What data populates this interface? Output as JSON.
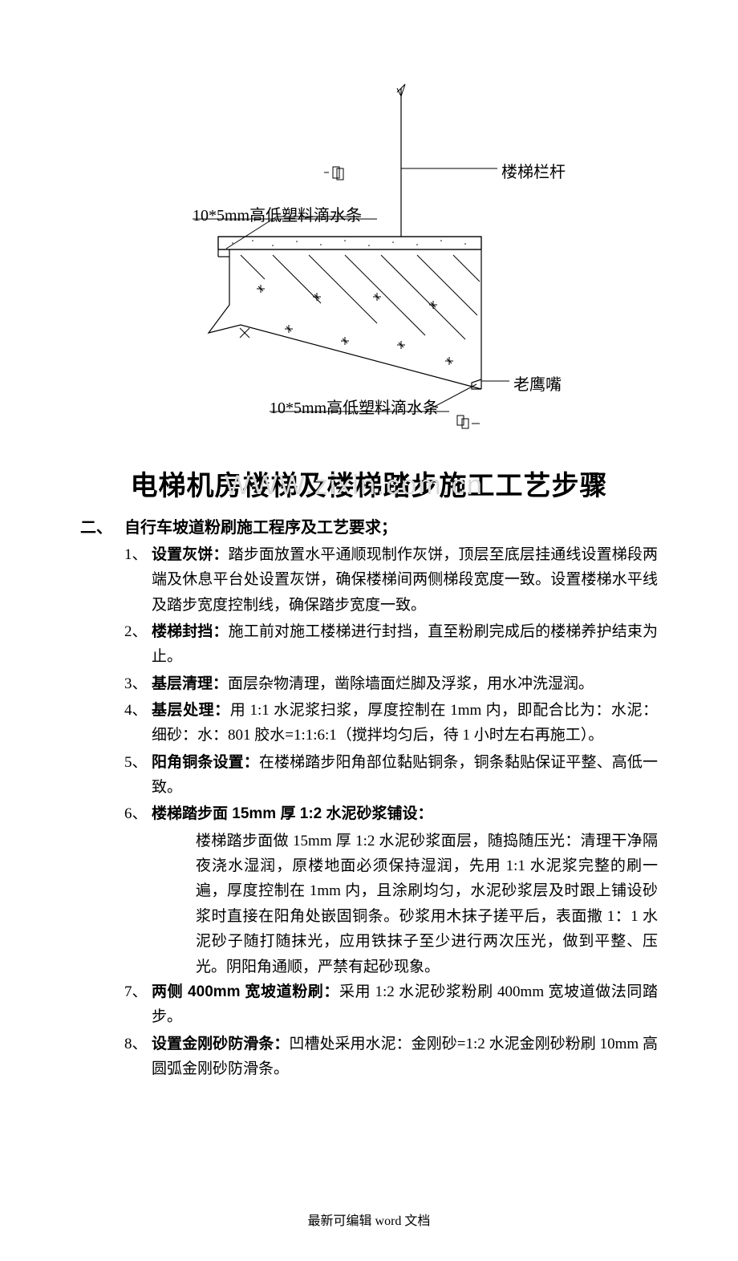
{
  "diagram": {
    "label_top_strip": "10*5mm高低塑料滴水条",
    "label_bottom_strip": "10*5mm高低塑料滴水条",
    "label_rail": "楼梯栏杆",
    "label_eagle": "老鹰嘴",
    "colors": {
      "line": "#000000",
      "hatch": "#000000",
      "bg": "#ffffff",
      "watermark": "#d9d9d9"
    }
  },
  "watermark": "WWW.zixin.com.cn",
  "title": "电梯机房楼梯及楼梯踏步施工工艺步骤",
  "section": {
    "num": "二、",
    "title": "自行车坡道粉刷施工程序及工艺要求；"
  },
  "items": [
    {
      "num": "1、",
      "bold": "设置灰饼：",
      "text": "踏步面放置水平通顺现制作灰饼，顶层至底层挂通线设置梯段两端及休息平台处设置灰饼，确保楼梯间两侧梯段宽度一致。设置楼梯水平线及踏步宽度控制线，确保踏步宽度一致。"
    },
    {
      "num": "2、",
      "bold": "楼梯封挡：",
      "text": "施工前对施工楼梯进行封挡，直至粉刷完成后的楼梯养护结束为止。"
    },
    {
      "num": "3、",
      "bold": "基层清理：",
      "text": "面层杂物清理，凿除墙面烂脚及浮浆，用水冲洗湿润。"
    },
    {
      "num": "4、",
      "bold": "基层处理：",
      "text": "用 1:1 水泥浆扫浆，厚度控制在 1mm 内，即配合比为：水泥：细砂：水：801 胶水=1:1:6:1（搅拌均匀后，待 1 小时左右再施工）。"
    },
    {
      "num": "5、",
      "bold": "阳角铜条设置：",
      "text": "在楼梯踏步阳角部位黏贴铜条，铜条黏贴保证平整、高低一致。"
    },
    {
      "num": "6、",
      "bold": "楼梯踏步面 15mm 厚 1:2 水泥砂浆铺设：",
      "text": "",
      "extra": "楼梯踏步面做 15mm 厚 1:2 水泥砂浆面层，随捣随压光：清理干净隔夜浇水湿润，原楼地面必须保持湿润，先用 1:1 水泥浆完整的刷一遍，厚度控制在 1mm 内，且涂刷均匀，水泥砂浆层及时跟上铺设砂浆时直接在阳角处嵌固铜条。砂浆用木抹子搓平后，表面撒 1：1 水泥砂子随打随抹光，应用铁抹子至少进行两次压光，做到平整、压光。阴阳角通顺，严禁有起砂现象。"
    },
    {
      "num": "7、",
      "bold": "两侧 400mm 宽坡道粉刷：",
      "text": "采用 1:2 水泥砂浆粉刷 400mm 宽坡道做法同踏步。"
    },
    {
      "num": "8、",
      "bold": "设置金刚砂防滑条：",
      "text": "凹槽处采用水泥：金刚砂=1:2 水泥金刚砂粉刷 10mm 高圆弧金刚砂防滑条。"
    }
  ],
  "footer": "最新可编辑 word 文档"
}
